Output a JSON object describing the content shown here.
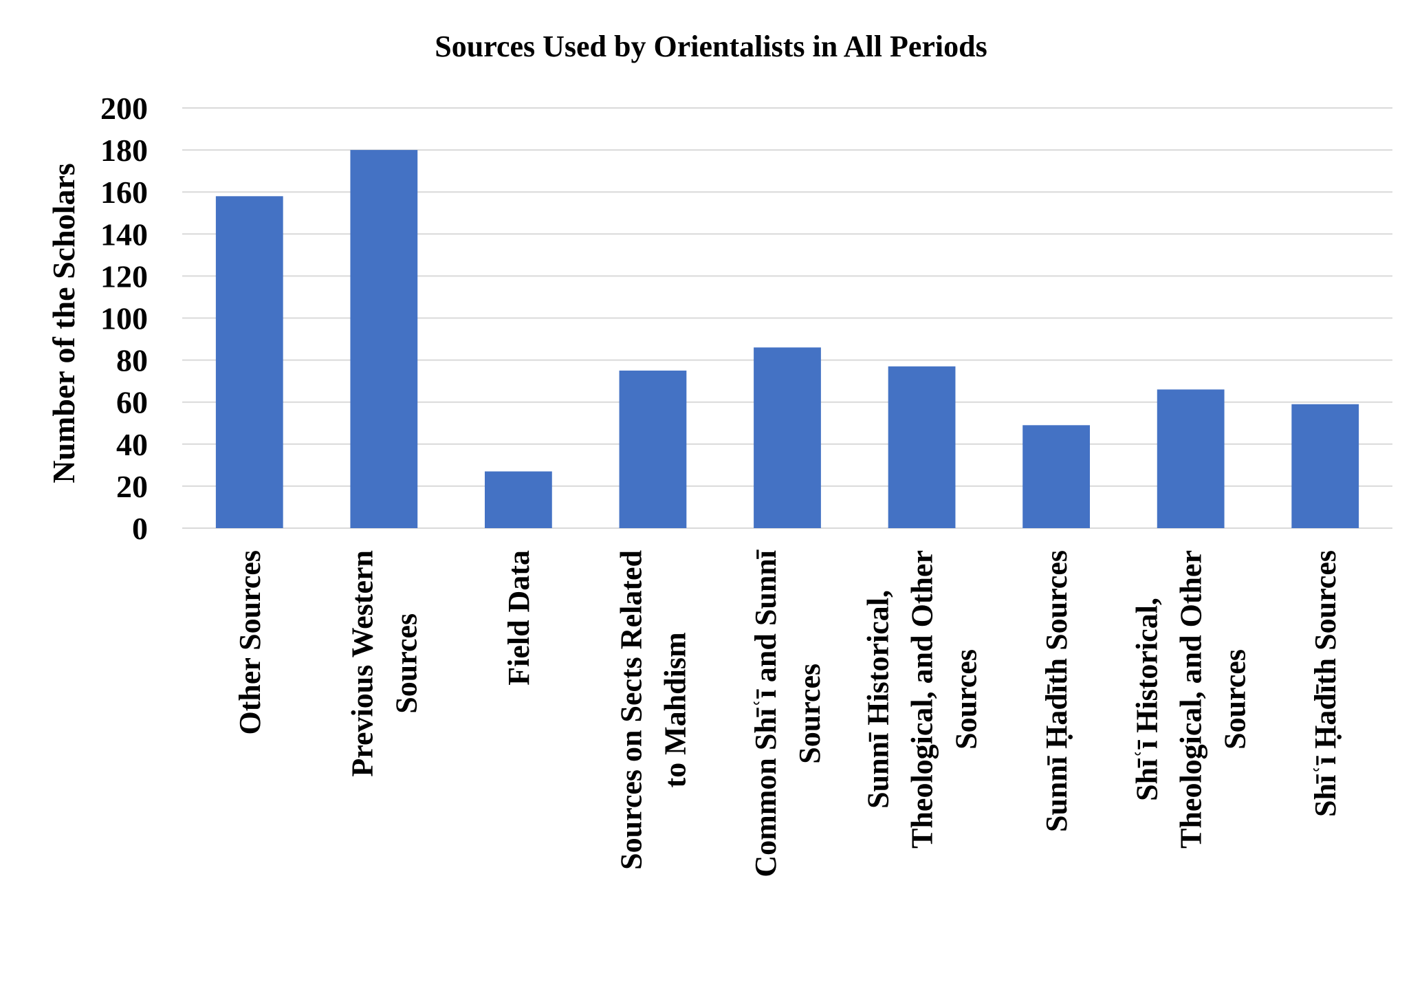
{
  "chart_data": {
    "type": "bar",
    "title": "Sources Used by Orientalists in All Periods",
    "xlabel": "",
    "ylabel": "Number of the Scholars",
    "ylim": [
      0,
      200
    ],
    "yticks": [
      0,
      20,
      40,
      60,
      80,
      100,
      120,
      140,
      160,
      180,
      200
    ],
    "grid": true,
    "bar_color": "#4472C4",
    "grid_color": "#D9D9D9",
    "categories": [
      "Other Sources",
      "Previous Western Sources",
      "Field Data",
      "Sources on Sects Related to Mahdism",
      "Common Shīʿī and Sunnī Sources",
      "Sunnī Historical, Theological, and Other Sources",
      "Sunnī Ḥadīth Sources",
      "Shīʿī Historical, Theological, and Other Sources",
      "Shīʿī Ḥadīth Sources"
    ],
    "category_lines": [
      [
        "Other Sources"
      ],
      [
        "Previous Western",
        "Sources"
      ],
      [
        "Field Data"
      ],
      [
        "Sources on Sects Related",
        "to Mahdism"
      ],
      [
        "Common Shīʿī and Sunnī",
        "Sources"
      ],
      [
        "Sunnī Historical,",
        "Theological, and Other",
        "Sources"
      ],
      [
        "Sunnī Ḥadīth Sources"
      ],
      [
        "Shīʿī Historical,",
        "Theological, and Other",
        "Sources"
      ],
      [
        "Shīʿī Ḥadīth Sources"
      ]
    ],
    "values": [
      158,
      180,
      27,
      75,
      86,
      77,
      49,
      66,
      59
    ]
  }
}
